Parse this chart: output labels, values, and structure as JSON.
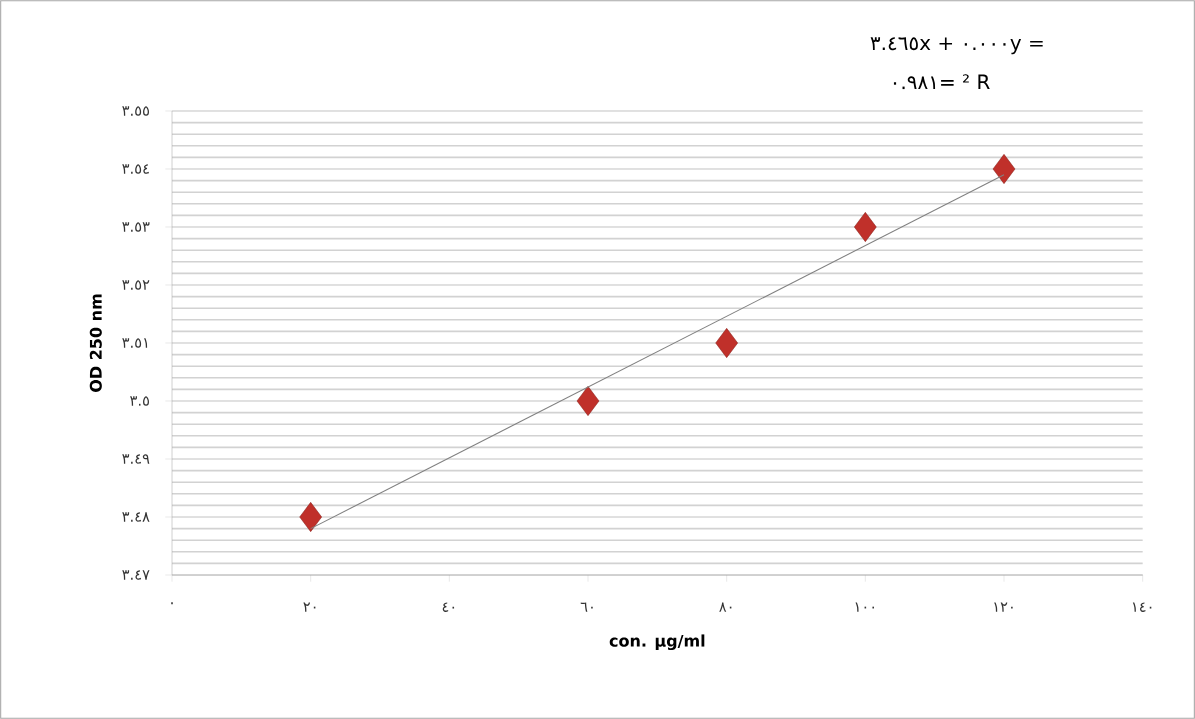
{
  "chart_data": {
    "type": "scatter",
    "xlabel": "con. µg/ml",
    "ylabel": "OD  250 nm",
    "annotations": [
      "٣.٤٦٥x + ٠.٠٠٠y =",
      "٠.٩٨١= ² R"
    ],
    "x": [
      20,
      60,
      80,
      100,
      120
    ],
    "series": [
      {
        "color": "#c0302a",
        "marker": "diamond",
        "values": [
          3.48,
          3.5,
          3.51,
          3.53,
          3.54
        ]
      },
      {
        "type": "line",
        "color": "#808080",
        "marker": "none",
        "x": [
          20,
          120
        ],
        "values": [
          3.478,
          3.539
        ]
      }
    ],
    "xlim": [
      0,
      140
    ],
    "xticks": [
      {
        "value": 0,
        "label": "٠"
      },
      {
        "value": 20,
        "label": "٢٠"
      },
      {
        "value": 40,
        "label": "٤٠"
      },
      {
        "value": 60,
        "label": "٦٠"
      },
      {
        "value": 80,
        "label": "٨٠"
      },
      {
        "value": 100,
        "label": "١٠٠"
      },
      {
        "value": 120,
        "label": "١٢٠"
      },
      {
        "value": 140,
        "label": "١٤٠"
      }
    ],
    "ylim": [
      3.47,
      3.55
    ],
    "yticks": [
      {
        "value": 3.47,
        "label": "٣.٤٧"
      },
      {
        "value": 3.48,
        "label": "٣.٤٨"
      },
      {
        "value": 3.49,
        "label": "٣.٤٩"
      },
      {
        "value": 3.5,
        "label": "٣.٥"
      },
      {
        "value": 3.51,
        "label": "٣.٥١"
      },
      {
        "value": 3.52,
        "label": "٣.٥٢"
      },
      {
        "value": 3.53,
        "label": "٣.٥٣"
      },
      {
        "value": 3.54,
        "label": "٣.٥٤"
      },
      {
        "value": 3.55,
        "label": "٣.٥٥"
      }
    ],
    "grid": "y"
  }
}
